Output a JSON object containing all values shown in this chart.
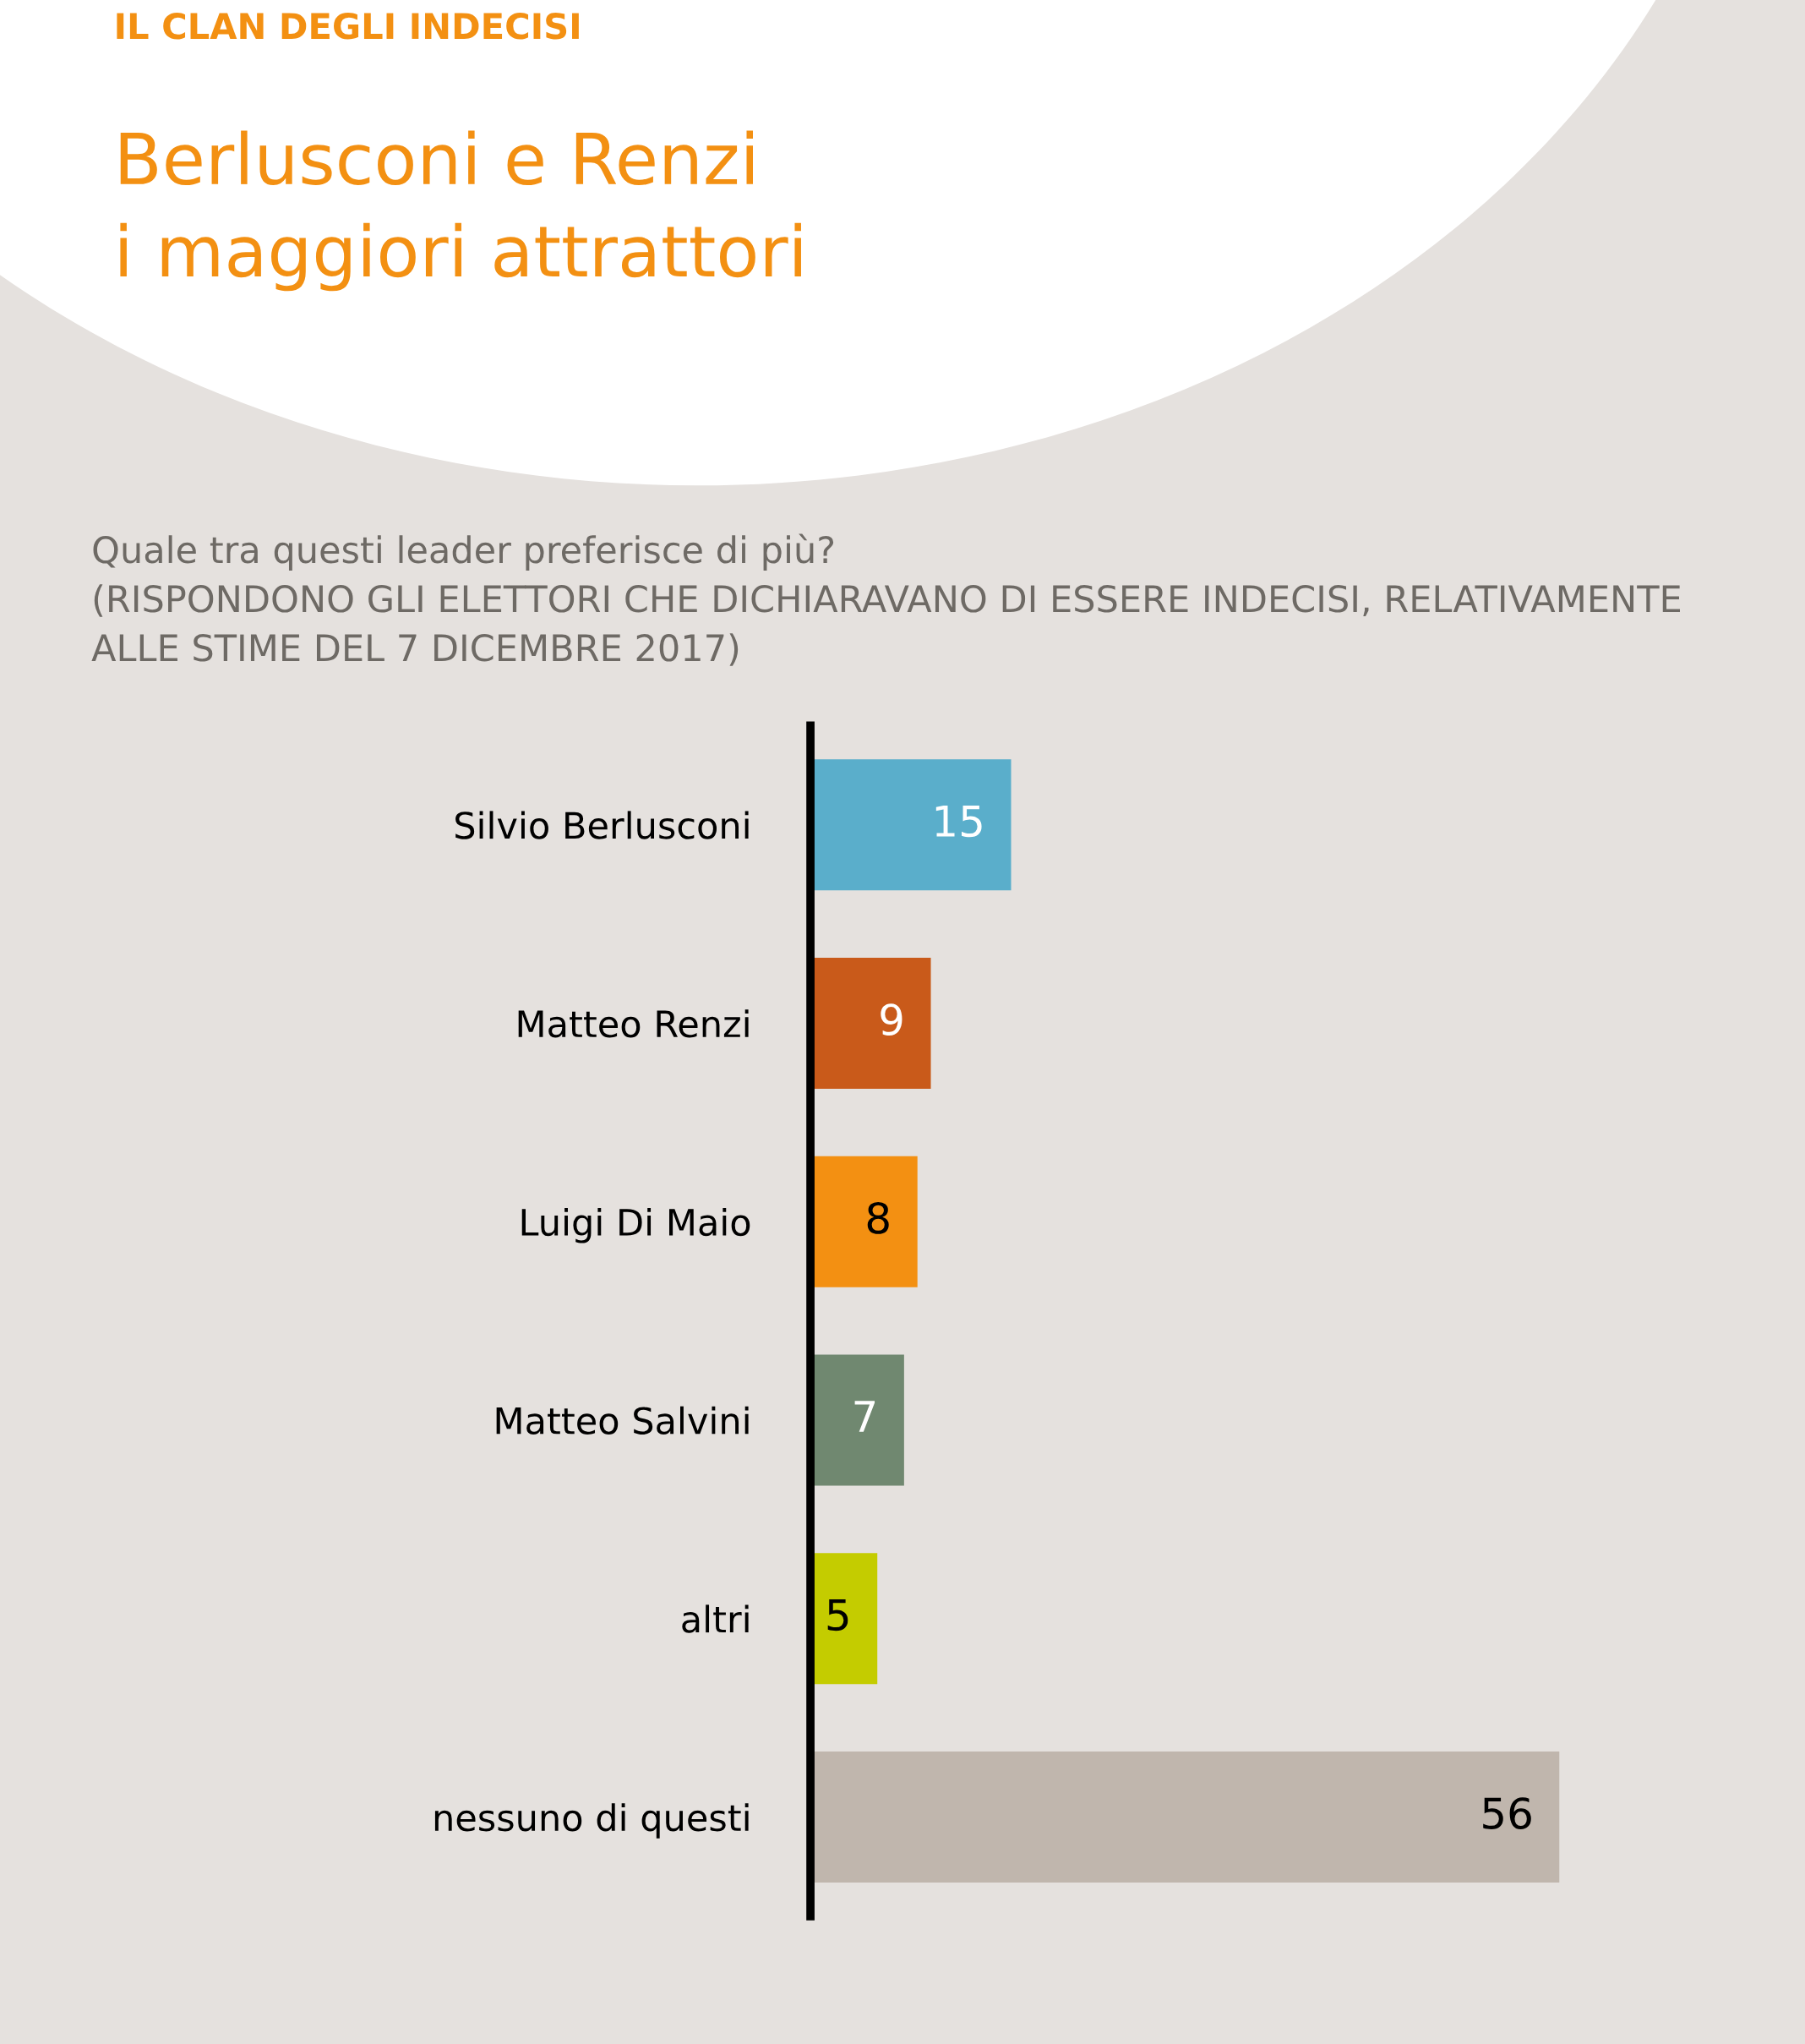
{
  "chart_data": {
    "type": "bar",
    "orientation": "horizontal",
    "title": "Berlusconi e Renzi\ni maggiori attrattori",
    "subtitle": "Quale tra questi leader preferisce di più?\n(RISPONDONO GLI ELETTORI CHE DICHIARAVANO DI ESSERE INDECISI, RELATIVAMENTE\nALLE STIME DEL 7 DICEMBRE 2017)",
    "annotations": [
      "IL CLAN DEGLI INDECISI"
    ],
    "categories": [
      "Silvio Berlusconi",
      "Matteo Renzi",
      "Luigi Di Maio",
      "Matteo Salvini",
      "altri",
      "nessuno di questi"
    ],
    "values": [
      15,
      9,
      8,
      7,
      5,
      56
    ],
    "colors": [
      "#5aaecb",
      "#c95a1a",
      "#f39012",
      "#708870",
      "#c4cc00",
      "#c0b6ad"
    ],
    "data_labels": true
  }
}
